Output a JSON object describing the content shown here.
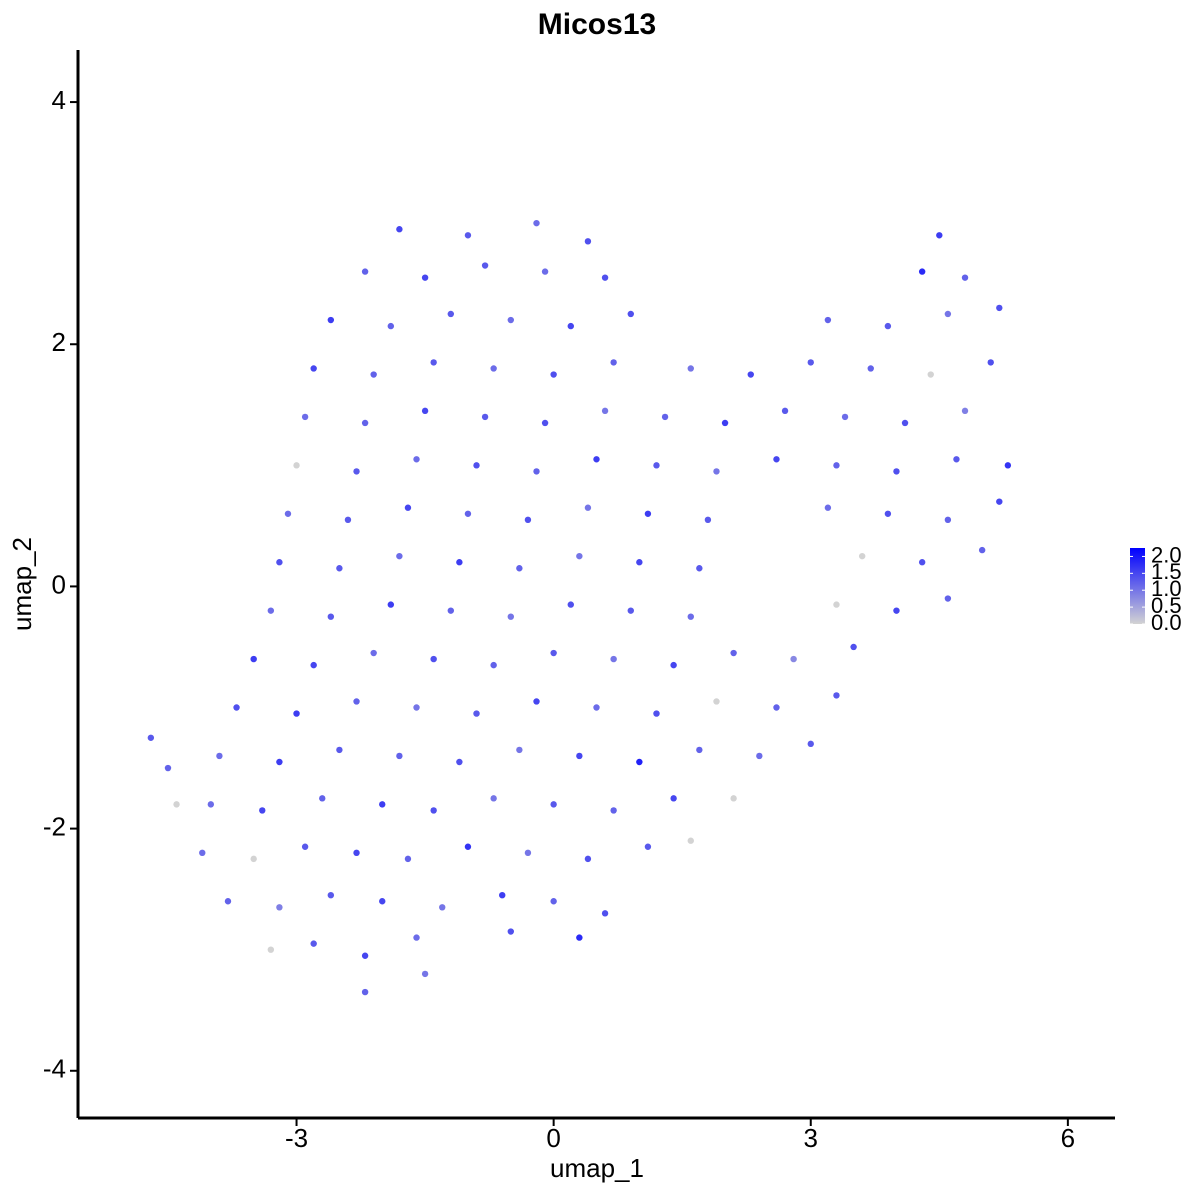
{
  "chart_data": {
    "type": "scatter",
    "title": "Micos13",
    "xlabel": "umap_1",
    "ylabel": "umap_2",
    "xlim": [
      -5.55,
      6.55
    ],
    "ylim": [
      -4.39,
      4.43
    ],
    "xticks": [
      -3,
      0,
      3,
      6
    ],
    "yticks": [
      -4,
      -2,
      0,
      2,
      4
    ],
    "low_color": "#D3D3D3",
    "high_color": "#0000FF",
    "colorlim": [
      0,
      2.25
    ],
    "colorticks": [
      {
        "value": 0,
        "label": "0.0"
      },
      {
        "value": 0.5,
        "label": "0.5"
      },
      {
        "value": 1,
        "label": "1.0"
      },
      {
        "value": 1.5,
        "label": "1.5"
      },
      {
        "value": 2,
        "label": "2.0"
      }
    ],
    "x": [
      -2.2,
      -1.5,
      -3.3,
      -2.8,
      -2.2,
      -1.6,
      -0.5,
      0.3,
      -3.8,
      -3.2,
      -2.6,
      -2.0,
      -1.3,
      -0.6,
      0.0,
      0.6,
      -4.1,
      -3.5,
      -2.9,
      -2.3,
      -1.7,
      -1.0,
      -0.3,
      0.4,
      1.1,
      1.6,
      -4.0,
      -3.4,
      -2.7,
      -2.0,
      -1.4,
      -0.7,
      0.0,
      0.7,
      1.4,
      2.1,
      -3.9,
      -3.2,
      -2.5,
      -1.8,
      -1.1,
      -0.4,
      0.3,
      1.0,
      1.7,
      2.4,
      3.0,
      -3.7,
      -3.0,
      -2.3,
      -1.6,
      -0.9,
      -0.2,
      0.5,
      1.2,
      1.9,
      2.6,
      3.3,
      -3.5,
      -2.8,
      -2.1,
      -1.4,
      -0.7,
      0.0,
      0.7,
      1.4,
      2.1,
      2.8,
      3.5,
      -3.3,
      -2.6,
      -1.9,
      -1.2,
      -0.5,
      0.2,
      0.9,
      1.6,
      3.3,
      4.0,
      4.6,
      -3.2,
      -2.5,
      -1.8,
      -1.1,
      -0.4,
      0.3,
      1.0,
      1.7,
      3.6,
      4.3,
      5.0,
      -3.1,
      -2.4,
      -1.7,
      -1.0,
      -0.3,
      0.4,
      1.1,
      1.8,
      3.2,
      3.9,
      4.6,
      5.2,
      -3.0,
      -2.3,
      -1.6,
      -0.9,
      -0.2,
      0.5,
      1.2,
      1.9,
      2.6,
      3.3,
      4.0,
      4.7,
      5.3,
      -2.9,
      -2.2,
      -1.5,
      -0.8,
      -0.1,
      0.6,
      1.3,
      2.0,
      2.7,
      3.4,
      4.1,
      4.8,
      -2.8,
      -2.1,
      -1.4,
      -0.7,
      0.0,
      0.7,
      1.6,
      2.3,
      3.0,
      3.7,
      4.4,
      5.1,
      -2.6,
      -1.9,
      -1.2,
      -0.5,
      0.2,
      0.9,
      3.2,
      3.9,
      4.6,
      5.2,
      -2.2,
      -1.5,
      -0.8,
      -0.1,
      0.6,
      4.3,
      4.8,
      -1.8,
      -1.0,
      -0.2,
      0.4,
      4.5,
      -4.7,
      -4.5,
      -4.4
    ],
    "y": [
      -3.35,
      -3.2,
      -3.0,
      -2.95,
      -3.05,
      -2.9,
      -2.85,
      -2.9,
      -2.6,
      -2.65,
      -2.55,
      -2.6,
      -2.65,
      -2.55,
      -2.6,
      -2.7,
      -2.2,
      -2.25,
      -2.15,
      -2.2,
      -2.25,
      -2.15,
      -2.2,
      -2.25,
      -2.15,
      -2.1,
      -1.8,
      -1.85,
      -1.75,
      -1.8,
      -1.85,
      -1.75,
      -1.8,
      -1.85,
      -1.75,
      -1.75,
      -1.4,
      -1.45,
      -1.35,
      -1.4,
      -1.45,
      -1.35,
      -1.4,
      -1.45,
      -1.35,
      -1.4,
      -1.3,
      -1.0,
      -1.05,
      -0.95,
      -1.0,
      -1.05,
      -0.95,
      -1.0,
      -1.05,
      -0.95,
      -1.0,
      -0.9,
      -0.6,
      -0.65,
      -0.55,
      -0.6,
      -0.65,
      -0.55,
      -0.6,
      -0.65,
      -0.55,
      -0.6,
      -0.5,
      -0.2,
      -0.25,
      -0.15,
      -0.2,
      -0.25,
      -0.15,
      -0.2,
      -0.25,
      -0.15,
      -0.2,
      -0.1,
      0.2,
      0.15,
      0.25,
      0.2,
      0.15,
      0.25,
      0.2,
      0.15,
      0.25,
      0.2,
      0.3,
      0.6,
      0.55,
      0.65,
      0.6,
      0.55,
      0.65,
      0.6,
      0.55,
      0.65,
      0.6,
      0.55,
      0.7,
      1.0,
      0.95,
      1.05,
      1.0,
      0.95,
      1.05,
      1.0,
      0.95,
      1.05,
      1.0,
      0.95,
      1.05,
      1.0,
      1.4,
      1.35,
      1.45,
      1.4,
      1.35,
      1.45,
      1.4,
      1.35,
      1.45,
      1.4,
      1.35,
      1.45,
      1.8,
      1.75,
      1.85,
      1.8,
      1.75,
      1.85,
      1.8,
      1.75,
      1.85,
      1.8,
      1.75,
      1.85,
      2.2,
      2.15,
      2.25,
      2.2,
      2.15,
      2.25,
      2.2,
      2.15,
      2.25,
      2.3,
      2.6,
      2.55,
      2.65,
      2.6,
      2.55,
      2.6,
      2.55,
      2.95,
      2.9,
      3.0,
      2.85,
      2.9,
      -1.25,
      -1.5,
      -1.8
    ],
    "values": [
      1.2,
      1.0,
      0.0,
      1.3,
      1.5,
      1.1,
      1.4,
      1.8,
      1.2,
      0.9,
      1.3,
      1.5,
      1.0,
      1.6,
      1.2,
      1.4,
      1.1,
      0.0,
      1.3,
      1.5,
      1.2,
      1.7,
      1.0,
      1.4,
      1.3,
      0.0,
      1.1,
      1.5,
      1.2,
      1.6,
      1.4,
      1.0,
      1.3,
      1.2,
      1.5,
      0.0,
      1.1,
      1.6,
      1.3,
      1.2,
      1.4,
      1.0,
      1.5,
      1.9,
      1.2,
      1.1,
      1.3,
      1.4,
      1.6,
      1.2,
      1.0,
      1.3,
      1.5,
      1.1,
      1.4,
      0.0,
      1.2,
      1.3,
      1.6,
      1.5,
      1.1,
      1.4,
      1.2,
      1.3,
      1.0,
      1.5,
      1.2,
      0.8,
      1.4,
      1.1,
      1.3,
      1.6,
      1.2,
      1.0,
      1.4,
      1.3,
      1.1,
      0.0,
      1.5,
      1.2,
      1.4,
      1.3,
      1.1,
      1.6,
      1.2,
      1.0,
      1.5,
      1.3,
      0.0,
      1.4,
      1.2,
      1.1,
      1.3,
      1.5,
      1.2,
      1.4,
      1.0,
      1.6,
      1.3,
      1.1,
      1.4,
      1.2,
      1.5,
      0.0,
      1.3,
      1.1,
      1.4,
      1.2,
      1.6,
      1.3,
      1.0,
      1.5,
      1.2,
      1.4,
      1.3,
      1.7,
      1.1,
      1.2,
      1.5,
      1.3,
      1.4,
      1.0,
      1.2,
      1.6,
      1.3,
      1.1,
      1.4,
      0.9,
      1.5,
      1.2,
      1.3,
      1.1,
      1.4,
      1.2,
      1.0,
      1.5,
      1.3,
      1.2,
      0.0,
      1.4,
      1.6,
      1.2,
      1.3,
      1.1,
      1.5,
      1.4,
      1.2,
      1.3,
      1.0,
      1.4,
      1.2,
      1.5,
      1.3,
      1.1,
      1.4,
      1.8,
      1.2,
      1.5,
      1.3,
      1.1,
      1.4,
      1.6,
      1.3,
      1.2,
      0.0
    ]
  }
}
